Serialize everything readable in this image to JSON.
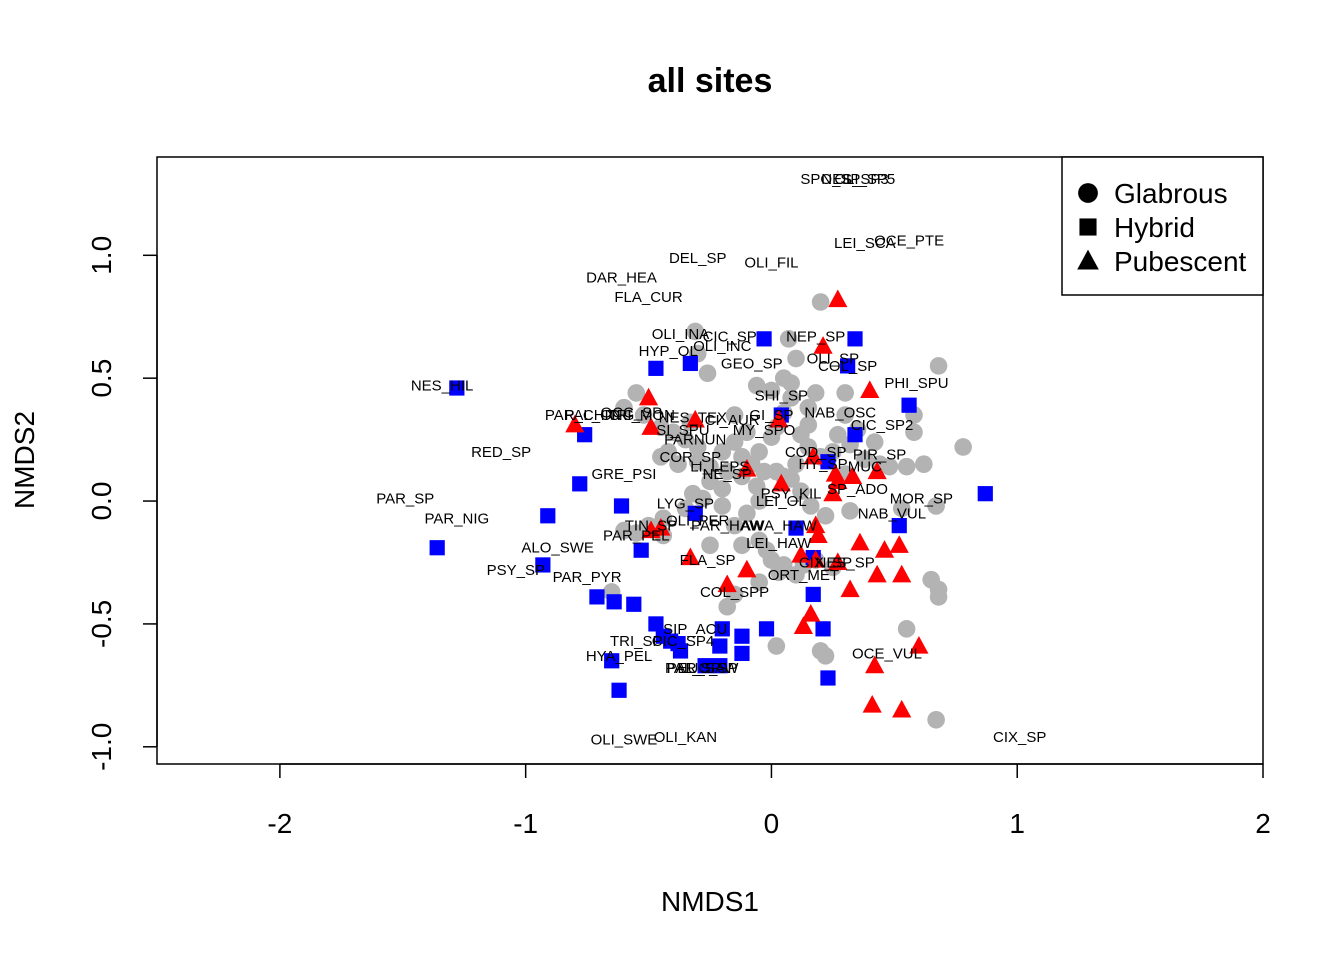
{
  "chart_data": {
    "type": "scatter",
    "title": "all sites",
    "xlabel": "NMDS1",
    "ylabel": "NMDS2",
    "xlim": [
      -2.5,
      2.0
    ],
    "ylim": [
      -1.07,
      1.4
    ],
    "x_ticks": [
      -2,
      -1,
      0,
      1,
      2
    ],
    "y_ticks": [
      -1.0,
      -0.5,
      0.0,
      0.5,
      1.0
    ],
    "x_tick_labels": [
      "-2",
      "-1",
      "0",
      "1",
      "2"
    ],
    "y_tick_labels": [
      "-1.0",
      "-0.5",
      "0.0",
      "0.5",
      "1.0"
    ],
    "grid": false,
    "legend": {
      "placement": "top-right",
      "entries": [
        {
          "label": "Glabrous",
          "shape": "circle",
          "color": "#000000"
        },
        {
          "label": "Hybrid",
          "shape": "square",
          "color": "#000000"
        },
        {
          "label": "Pubescent",
          "shape": "triangle",
          "color": "#000000"
        }
      ]
    },
    "colors": {
      "Glabrous": "#b3b3b3",
      "Hybrid": "#0000ff",
      "Pubescent": "#ff0000"
    },
    "series": [
      {
        "name": "Glabrous",
        "shape": "circle",
        "color": "#b3b3b3",
        "points": [
          [
            -0.31,
            0.69
          ],
          [
            -0.3,
            0.6
          ],
          [
            -0.26,
            0.52
          ],
          [
            -0.55,
            0.44
          ],
          [
            -0.6,
            0.38
          ],
          [
            -0.52,
            0.35
          ],
          [
            -0.45,
            0.3
          ],
          [
            -0.4,
            0.28
          ],
          [
            -0.33,
            0.32
          ],
          [
            -0.35,
            0.25
          ],
          [
            -0.3,
            0.22
          ],
          [
            -0.42,
            0.2
          ],
          [
            -0.45,
            0.18
          ],
          [
            -0.38,
            0.15
          ],
          [
            -0.3,
            0.16
          ],
          [
            -0.25,
            0.14
          ],
          [
            -0.2,
            0.2
          ],
          [
            -0.15,
            0.24
          ],
          [
            -0.1,
            0.28
          ],
          [
            -0.12,
            0.18
          ],
          [
            -0.08,
            0.15
          ],
          [
            -0.05,
            0.2
          ],
          [
            -0.18,
            0.12
          ],
          [
            -0.25,
            0.08
          ],
          [
            -0.2,
            0.05
          ],
          [
            -0.12,
            0.1
          ],
          [
            -0.06,
            0.06
          ],
          [
            -0.03,
            0.12
          ],
          [
            0.0,
            0.26
          ],
          [
            0.02,
            0.3
          ],
          [
            0.05,
            0.36
          ],
          [
            0.08,
            0.42
          ],
          [
            0.0,
            0.45
          ],
          [
            -0.06,
            0.47
          ],
          [
            0.05,
            0.5
          ],
          [
            0.08,
            0.48
          ],
          [
            0.1,
            0.58
          ],
          [
            0.07,
            0.66
          ],
          [
            0.2,
            0.81
          ],
          [
            0.18,
            0.44
          ],
          [
            0.15,
            0.38
          ],
          [
            0.15,
            0.31
          ],
          [
            0.12,
            0.27
          ],
          [
            0.15,
            0.22
          ],
          [
            0.2,
            0.18
          ],
          [
            0.25,
            0.2
          ],
          [
            0.27,
            0.27
          ],
          [
            0.3,
            0.35
          ],
          [
            0.3,
            0.44
          ],
          [
            0.35,
            0.29
          ],
          [
            0.32,
            0.23
          ],
          [
            0.38,
            0.17
          ],
          [
            0.44,
            0.15
          ],
          [
            0.48,
            0.14
          ],
          [
            0.55,
            0.14
          ],
          [
            0.62,
            0.15
          ],
          [
            0.58,
            0.28
          ],
          [
            0.58,
            0.35
          ],
          [
            0.68,
            0.55
          ],
          [
            0.78,
            0.22
          ],
          [
            0.65,
            -0.32
          ],
          [
            0.68,
            -0.36
          ],
          [
            0.68,
            -0.39
          ],
          [
            0.55,
            -0.52
          ],
          [
            0.67,
            -0.02
          ],
          [
            0.53,
            -0.03
          ],
          [
            0.32,
            -0.04
          ],
          [
            0.22,
            -0.06
          ],
          [
            0.16,
            -0.02
          ],
          [
            0.12,
            0.04
          ],
          [
            0.08,
            0.09
          ],
          [
            0.02,
            0.12
          ],
          [
            -0.05,
            0.0
          ],
          [
            -0.1,
            -0.05
          ],
          [
            -0.15,
            -0.1
          ],
          [
            -0.2,
            -0.02
          ],
          [
            -0.28,
            0.01
          ],
          [
            -0.32,
            0.03
          ],
          [
            -0.35,
            -0.03
          ],
          [
            -0.44,
            -0.07
          ],
          [
            -0.55,
            -0.13
          ],
          [
            -0.6,
            -0.12
          ],
          [
            -0.5,
            -0.1
          ],
          [
            -0.44,
            -0.14
          ],
          [
            -0.25,
            -0.18
          ],
          [
            -0.12,
            -0.18
          ],
          [
            -0.05,
            -0.16
          ],
          [
            -0.02,
            -0.2
          ],
          [
            0.0,
            -0.24
          ],
          [
            0.05,
            -0.26
          ],
          [
            0.13,
            -0.26
          ],
          [
            0.18,
            -0.24
          ],
          [
            0.25,
            -0.27
          ],
          [
            0.1,
            -0.3
          ],
          [
            0.03,
            -0.29
          ],
          [
            -0.05,
            -0.33
          ],
          [
            -0.15,
            -0.38
          ],
          [
            -0.18,
            -0.43
          ],
          [
            -0.65,
            -0.37
          ],
          [
            0.02,
            -0.59
          ],
          [
            0.2,
            -0.61
          ],
          [
            0.22,
            -0.63
          ],
          [
            0.05,
            0.1
          ],
          [
            0.1,
            0.15
          ],
          [
            0.3,
            0.11
          ],
          [
            0.42,
            0.24
          ],
          [
            -0.15,
            0.35
          ],
          [
            0.67,
            -0.89
          ]
        ]
      },
      {
        "name": "Hybrid",
        "shape": "square",
        "color": "#0000ff",
        "points": [
          [
            -1.28,
            0.46
          ],
          [
            -0.76,
            0.27
          ],
          [
            -0.47,
            0.54
          ],
          [
            -0.33,
            0.56
          ],
          [
            -0.03,
            0.66
          ],
          [
            0.34,
            0.66
          ],
          [
            0.31,
            0.55
          ],
          [
            0.56,
            0.39
          ],
          [
            0.04,
            0.35
          ],
          [
            0.34,
            0.27
          ],
          [
            0.23,
            0.16
          ],
          [
            -0.78,
            0.07
          ],
          [
            -0.61,
            -0.02
          ],
          [
            -0.91,
            -0.06
          ],
          [
            -0.31,
            -0.05
          ],
          [
            0.1,
            -0.11
          ],
          [
            0.52,
            -0.1
          ],
          [
            0.87,
            0.03
          ],
          [
            -1.36,
            -0.19
          ],
          [
            -0.53,
            -0.2
          ],
          [
            -0.93,
            -0.26
          ],
          [
            0.17,
            -0.23
          ],
          [
            0.17,
            -0.38
          ],
          [
            -0.71,
            -0.39
          ],
          [
            -0.64,
            -0.41
          ],
          [
            -0.56,
            -0.42
          ],
          [
            -0.47,
            -0.5
          ],
          [
            -0.44,
            -0.55
          ],
          [
            -0.41,
            -0.57
          ],
          [
            -0.38,
            -0.58
          ],
          [
            -0.37,
            -0.61
          ],
          [
            -0.2,
            -0.52
          ],
          [
            -0.21,
            -0.59
          ],
          [
            -0.12,
            -0.55
          ],
          [
            -0.02,
            -0.52
          ],
          [
            0.21,
            -0.52
          ],
          [
            -0.12,
            -0.62
          ],
          [
            -0.65,
            -0.65
          ],
          [
            -0.27,
            -0.67
          ],
          [
            -0.21,
            -0.67
          ],
          [
            0.23,
            -0.72
          ],
          [
            -0.62,
            -0.77
          ]
        ]
      },
      {
        "name": "Pubescent",
        "shape": "triangle",
        "color": "#ff0000",
        "points": [
          [
            0.27,
            0.82
          ],
          [
            0.21,
            0.63
          ],
          [
            0.4,
            0.45
          ],
          [
            -0.5,
            0.42
          ],
          [
            -0.8,
            0.31
          ],
          [
            -0.49,
            0.3
          ],
          [
            -0.31,
            0.33
          ],
          [
            0.03,
            0.33
          ],
          [
            0.17,
            0.18
          ],
          [
            0.26,
            0.11
          ],
          [
            0.33,
            0.1
          ],
          [
            0.43,
            0.12
          ],
          [
            -0.1,
            0.13
          ],
          [
            0.04,
            0.07
          ],
          [
            0.25,
            0.03
          ],
          [
            0.27,
            0.08
          ],
          [
            0.18,
            -0.1
          ],
          [
            0.19,
            -0.14
          ],
          [
            -0.49,
            -0.12
          ],
          [
            -0.45,
            -0.11
          ],
          [
            0.36,
            -0.17
          ],
          [
            0.46,
            -0.2
          ],
          [
            0.52,
            -0.18
          ],
          [
            -0.33,
            -0.23
          ],
          [
            0.12,
            -0.22
          ],
          [
            0.18,
            -0.24
          ],
          [
            0.27,
            -0.25
          ],
          [
            0.43,
            -0.3
          ],
          [
            0.53,
            -0.3
          ],
          [
            -0.1,
            -0.28
          ],
          [
            -0.18,
            -0.34
          ],
          [
            0.32,
            -0.36
          ],
          [
            0.16,
            -0.46
          ],
          [
            0.13,
            -0.51
          ],
          [
            0.6,
            -0.59
          ],
          [
            0.42,
            -0.67
          ],
          [
            0.41,
            -0.83
          ],
          [
            0.53,
            -0.85
          ]
        ]
      }
    ],
    "labels": [
      {
        "text": "SPO_SP",
        "x": 0.24,
        "y": 1.31
      },
      {
        "text": "NES_SP3",
        "x": 0.34,
        "y": 1.31
      },
      {
        "text": "OLI_SP5",
        "x": 0.38,
        "y": 1.31
      },
      {
        "text": "LEI_SCA",
        "x": 0.38,
        "y": 1.05
      },
      {
        "text": "OCE_PTE",
        "x": 0.56,
        "y": 1.06
      },
      {
        "text": "DEL_SP",
        "x": -0.3,
        "y": 0.99
      },
      {
        "text": "OLI_FIL",
        "x": -0.0,
        "y": 0.97
      },
      {
        "text": "DAR_HEA",
        "x": -0.61,
        "y": 0.91
      },
      {
        "text": "FLA_CUR",
        "x": -0.5,
        "y": 0.83
      },
      {
        "text": "OLI_INA",
        "x": -0.37,
        "y": 0.68
      },
      {
        "text": "CIC_SP",
        "x": -0.17,
        "y": 0.67
      },
      {
        "text": "HYP_OL",
        "x": -0.42,
        "y": 0.61
      },
      {
        "text": "OLI_INC",
        "x": -0.2,
        "y": 0.63
      },
      {
        "text": "NEP_SP",
        "x": 0.18,
        "y": 0.67
      },
      {
        "text": "OLI_SP",
        "x": 0.25,
        "y": 0.58
      },
      {
        "text": "GEO_SP",
        "x": -0.08,
        "y": 0.56
      },
      {
        "text": "COL_SP",
        "x": 0.31,
        "y": 0.55
      },
      {
        "text": "PHI_SPU",
        "x": 0.59,
        "y": 0.48
      },
      {
        "text": "NES_HIL",
        "x": -1.34,
        "y": 0.47
      },
      {
        "text": "SHI_SP",
        "x": 0.04,
        "y": 0.43
      },
      {
        "text": "NAB_OSC",
        "x": 0.28,
        "y": 0.36
      },
      {
        "text": "CIC_SP2",
        "x": 0.45,
        "y": 0.31
      },
      {
        "text": "PAR_CHIC",
        "x": -0.77,
        "y": 0.35
      },
      {
        "text": "PAL_ONG",
        "x": -0.7,
        "y": 0.35
      },
      {
        "text": "OCC_SP",
        "x": -0.57,
        "y": 0.36
      },
      {
        "text": "TRI_MON",
        "x": -0.53,
        "y": 0.35
      },
      {
        "text": "NES_TEX",
        "x": -0.32,
        "y": 0.34
      },
      {
        "text": "CI_AUR",
        "x": -0.16,
        "y": 0.33
      },
      {
        "text": "GI_SP",
        "x": 0.0,
        "y": 0.35
      },
      {
        "text": "SI_SPU",
        "x": -0.36,
        "y": 0.29
      },
      {
        "text": "MY_SPO",
        "x": -0.03,
        "y": 0.29
      },
      {
        "text": "PARNUN",
        "x": -0.31,
        "y": 0.25
      },
      {
        "text": "COR_SP",
        "x": -0.33,
        "y": 0.18
      },
      {
        "text": "COD_SP",
        "x": 0.18,
        "y": 0.2
      },
      {
        "text": "PIR_SP",
        "x": 0.44,
        "y": 0.19
      },
      {
        "text": "RED_SP",
        "x": -1.1,
        "y": 0.2
      },
      {
        "text": "LI_LEPS",
        "x": -0.21,
        "y": 0.14
      },
      {
        "text": "NE_SP",
        "x": -0.18,
        "y": 0.11
      },
      {
        "text": "HY_SP",
        "x": 0.21,
        "y": 0.15
      },
      {
        "text": "MUC",
        "x": 0.38,
        "y": 0.14
      },
      {
        "text": "GRE_PSI",
        "x": -0.6,
        "y": 0.11
      },
      {
        "text": "SP_ADO",
        "x": 0.35,
        "y": 0.05
      },
      {
        "text": "PSY_KIL",
        "x": 0.08,
        "y": 0.03
      },
      {
        "text": "LEI_OL",
        "x": 0.04,
        "y": -0.0
      },
      {
        "text": "MOR_SP",
        "x": 0.61,
        "y": 0.01
      },
      {
        "text": "PAR_SP",
        "x": -1.49,
        "y": 0.01
      },
      {
        "text": "LYG_SP",
        "x": -0.35,
        "y": -0.01
      },
      {
        "text": "NAB_VUL",
        "x": 0.49,
        "y": -0.05
      },
      {
        "text": "PAR_NIG",
        "x": -1.28,
        "y": -0.07
      },
      {
        "text": "OLI_PER",
        "x": -0.3,
        "y": -0.08
      },
      {
        "text": "PAR_HAW",
        "x": -0.18,
        "y": -0.1
      },
      {
        "text": "AWA_HAW",
        "x": 0.03,
        "y": -0.1
      },
      {
        "text": "TIN_SP",
        "x": -0.49,
        "y": -0.1
      },
      {
        "text": "PAR_PEL",
        "x": -0.55,
        "y": -0.14
      },
      {
        "text": "LEI_HAW",
        "x": 0.03,
        "y": -0.17
      },
      {
        "text": "ALO_SWE",
        "x": -0.87,
        "y": -0.19
      },
      {
        "text": "FLA_SP",
        "x": -0.26,
        "y": -0.24
      },
      {
        "text": "NES_SP",
        "x": 0.3,
        "y": -0.25
      },
      {
        "text": "CIX_SP",
        "x": 0.22,
        "y": -0.25
      },
      {
        "text": "PSY_SP",
        "x": -1.04,
        "y": -0.28
      },
      {
        "text": "ORT_MET",
        "x": 0.13,
        "y": -0.3
      },
      {
        "text": "PAR_PYR",
        "x": -0.75,
        "y": -0.31
      },
      {
        "text": "COL_SPP",
        "x": -0.15,
        "y": -0.37
      },
      {
        "text": "SIP_ACU",
        "x": -0.31,
        "y": -0.52
      },
      {
        "text": "TRI_SP",
        "x": -0.55,
        "y": -0.57
      },
      {
        "text": "CIC_SP4",
        "x": -0.36,
        "y": -0.57
      },
      {
        "text": "HYA_PEL",
        "x": -0.62,
        "y": -0.63
      },
      {
        "text": "OCE_VUL",
        "x": 0.47,
        "y": -0.62
      },
      {
        "text": "PAL_SP",
        "x": -0.32,
        "y": -0.68
      },
      {
        "text": "EUC_SP",
        "x": -0.26,
        "y": -0.68
      },
      {
        "text": "PAR_SAW",
        "x": -0.28,
        "y": -0.68
      },
      {
        "text": "OLI_KAN",
        "x": -0.35,
        "y": -0.96
      },
      {
        "text": "OLI_SWE",
        "x": -0.6,
        "y": -0.97
      },
      {
        "text": "CIX_SP",
        "x": 1.01,
        "y": -0.96
      }
    ]
  }
}
